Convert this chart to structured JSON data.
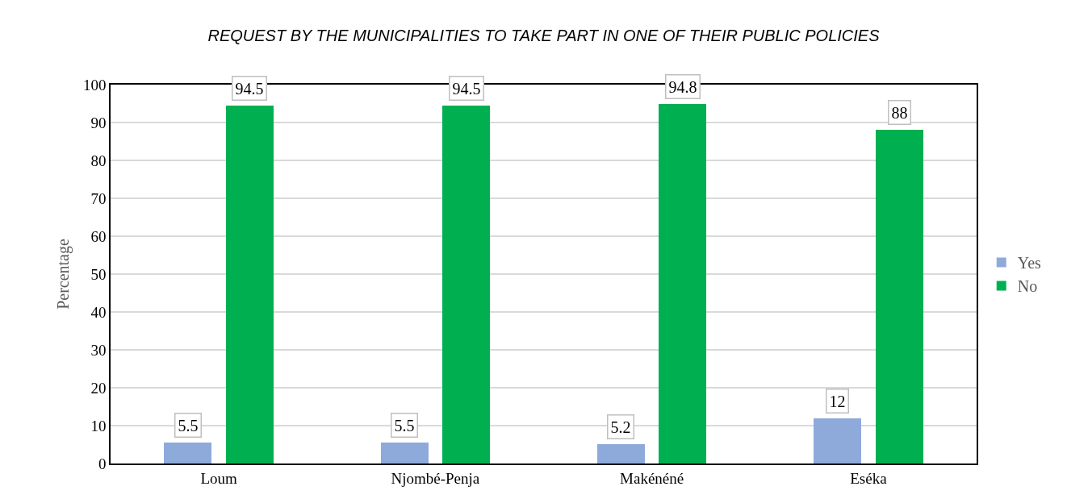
{
  "chart_data": {
    "type": "bar",
    "title": "REQUEST BY THE MUNICIPALITIES TO TAKE PART IN ONE OF THEIR PUBLIC POLICIES",
    "ylabel": "Percentage",
    "categories": [
      "Loum",
      "Njombé-Penja",
      "Makénéné",
      "Eséka"
    ],
    "series": [
      {
        "name": "Yes",
        "color": "#8eaadb",
        "values": [
          5.5,
          5.5,
          5.2,
          12
        ]
      },
      {
        "name": "No",
        "color": "#00b050",
        "values": [
          94.5,
          94.5,
          94.8,
          88
        ]
      }
    ],
    "ylim": [
      0,
      100
    ],
    "yticks": [
      0,
      10,
      20,
      30,
      40,
      50,
      60,
      70,
      80,
      90,
      100
    ],
    "grid": "y",
    "legend": "right",
    "data_labels": true
  }
}
